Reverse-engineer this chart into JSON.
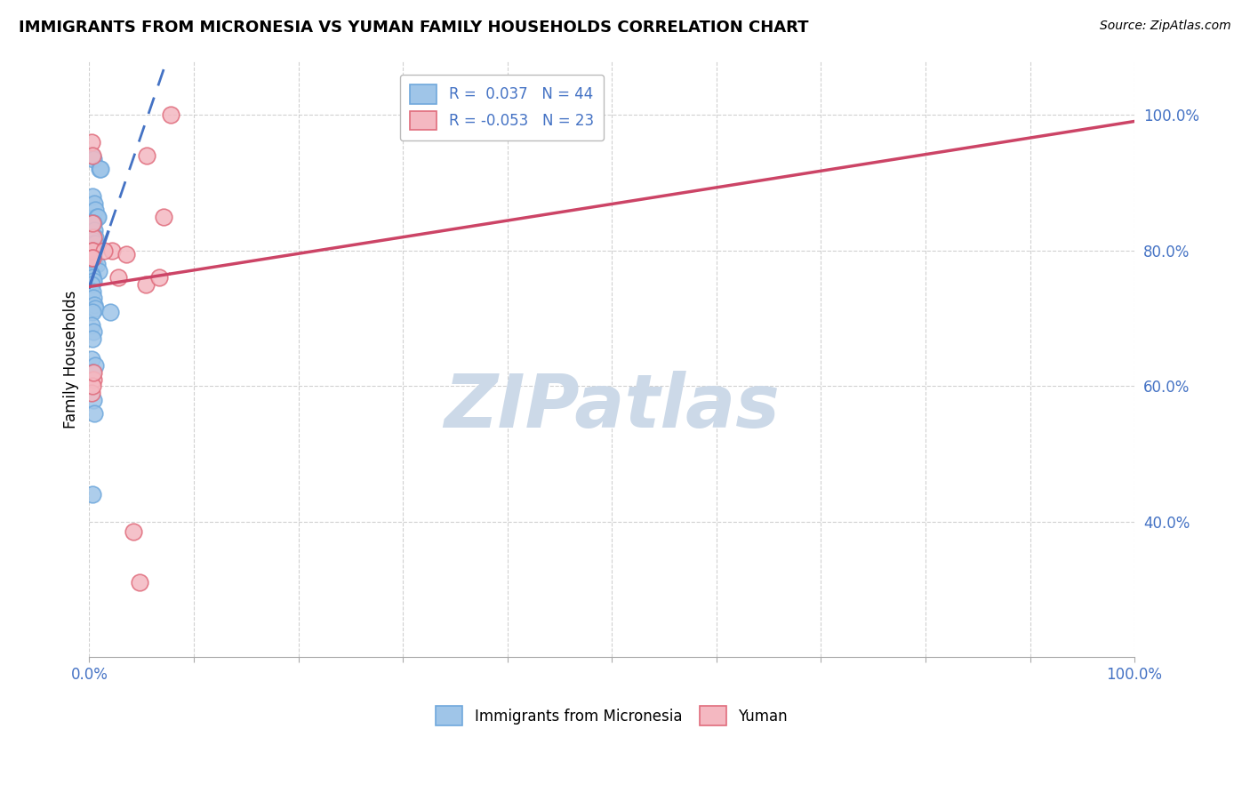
{
  "title": "IMMIGRANTS FROM MICRONESIA VS YUMAN FAMILY HOUSEHOLDS CORRELATION CHART",
  "source": "Source: ZipAtlas.com",
  "ylabel": "Family Households",
  "ylabel_right_ticks": [
    "40.0%",
    "60.0%",
    "80.0%",
    "100.0%"
  ],
  "ylabel_right_vals": [
    0.4,
    0.6,
    0.8,
    1.0
  ],
  "legend_blue_r": "R =  0.037",
  "legend_blue_n": "N = 44",
  "legend_pink_r": "R = -0.053",
  "legend_pink_n": "N = 23",
  "blue_scatter_x": [
    0.002,
    0.004,
    0.01,
    0.011,
    0.003,
    0.005,
    0.006,
    0.007,
    0.008,
    0.003,
    0.004,
    0.005,
    0.006,
    0.002,
    0.003,
    0.004,
    0.006,
    0.005,
    0.003,
    0.004,
    0.002,
    0.003,
    0.005,
    0.007,
    0.009,
    0.002,
    0.003,
    0.004,
    0.002,
    0.003,
    0.004,
    0.005,
    0.006,
    0.003,
    0.002,
    0.004,
    0.003,
    0.002,
    0.006,
    0.003,
    0.004,
    0.005,
    0.02,
    0.003
  ],
  "blue_scatter_y": [
    0.94,
    0.935,
    0.92,
    0.92,
    0.88,
    0.87,
    0.86,
    0.85,
    0.85,
    0.84,
    0.84,
    0.83,
    0.82,
    0.82,
    0.815,
    0.81,
    0.81,
    0.8,
    0.8,
    0.795,
    0.79,
    0.785,
    0.78,
    0.78,
    0.77,
    0.765,
    0.76,
    0.755,
    0.75,
    0.74,
    0.73,
    0.72,
    0.715,
    0.71,
    0.69,
    0.68,
    0.67,
    0.64,
    0.63,
    0.62,
    0.58,
    0.56,
    0.71,
    0.44
  ],
  "pink_scatter_x": [
    0.002,
    0.003,
    0.004,
    0.003,
    0.022,
    0.028,
    0.054,
    0.067,
    0.071,
    0.003,
    0.055,
    0.014,
    0.035,
    0.003,
    0.003,
    0.004,
    0.002,
    0.003,
    0.078,
    0.003,
    0.004,
    0.042,
    0.048
  ],
  "pink_scatter_y": [
    0.96,
    0.94,
    0.82,
    0.8,
    0.8,
    0.76,
    0.75,
    0.76,
    0.85,
    0.8,
    0.94,
    0.8,
    0.795,
    0.79,
    0.79,
    0.61,
    0.59,
    0.6,
    1.0,
    0.84,
    0.62,
    0.385,
    0.31
  ],
  "xlim": [
    0.0,
    1.0
  ],
  "ylim": [
    0.2,
    1.08
  ],
  "background_color": "#ffffff",
  "blue_color": "#9fc5e8",
  "pink_color": "#f4b8c1",
  "blue_edge_color": "#6fa8dc",
  "pink_edge_color": "#e06c7c",
  "blue_line_color": "#4472c4",
  "pink_line_color": "#cc4466",
  "grid_color": "#cccccc",
  "watermark": "ZIPatlas",
  "watermark_color": "#ccd9e8",
  "title_fontsize": 13,
  "source_fontsize": 10
}
